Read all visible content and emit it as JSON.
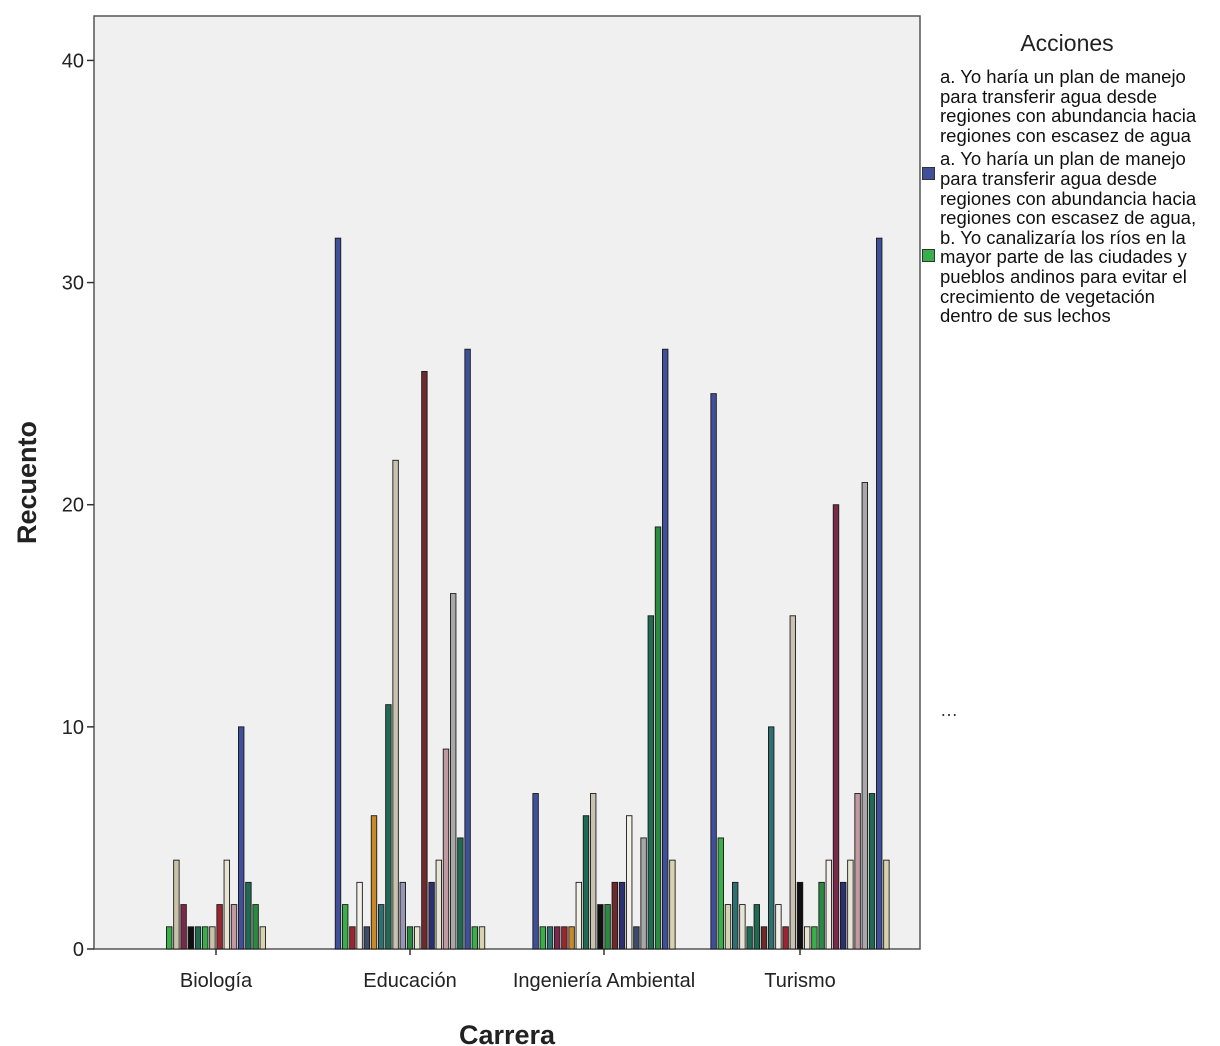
{
  "chart_data": {
    "type": "bar",
    "title": "",
    "xlabel": "Carrera",
    "ylabel": "Recuento",
    "ylim": [
      0,
      42
    ],
    "yticks": [
      0,
      10,
      20,
      30,
      40
    ],
    "categories": [
      "Biología",
      "Educación",
      "Ingeniería Ambiental",
      "Turismo"
    ],
    "grid": false,
    "legend_placement": "right",
    "plot_background": "#f0f0f0",
    "palette": [
      "#3f4f9a",
      "#3aae4a",
      "#c8c2a6",
      "#8a5a3e",
      "#2e7072",
      "#c8c2b0",
      "#e8e4d4",
      "#7a2a48",
      "#3a4c6a",
      "#c8892a",
      "#9896b6",
      "#1f6a52",
      "#f2f0e8",
      "#9b2630",
      "#2a8a40",
      "#c09aa0",
      "#101010",
      "#a8a8a8",
      "#c0a0a0",
      "#6e2a2a",
      "#2a3070",
      "#d8d2ae"
    ],
    "bars": [
      [
        {
          "c": 1,
          "v": 1
        },
        {
          "c": 2,
          "v": 4
        },
        {
          "c": 7,
          "v": 2
        },
        {
          "c": 16,
          "v": 1
        },
        {
          "c": 11,
          "v": 1
        },
        {
          "c": 1,
          "v": 1
        },
        {
          "c": 2,
          "v": 1
        },
        {
          "c": 13,
          "v": 2
        },
        {
          "c": 6,
          "v": 4
        },
        {
          "c": 15,
          "v": 2
        },
        {
          "c": 0,
          "v": 10
        },
        {
          "c": 11,
          "v": 3
        },
        {
          "c": 14,
          "v": 2
        },
        {
          "c": 21,
          "v": 1
        }
      ],
      [
        {
          "c": 0,
          "v": 32
        },
        {
          "c": 1,
          "v": 2
        },
        {
          "c": 13,
          "v": 1
        },
        {
          "c": 12,
          "v": 3
        },
        {
          "c": 8,
          "v": 1
        },
        {
          "c": 9,
          "v": 6
        },
        {
          "c": 4,
          "v": 2
        },
        {
          "c": 11,
          "v": 11
        },
        {
          "c": 5,
          "v": 22
        },
        {
          "c": 10,
          "v": 3
        },
        {
          "c": 14,
          "v": 1
        },
        {
          "c": 6,
          "v": 1
        },
        {
          "c": 19,
          "v": 26
        },
        {
          "c": 20,
          "v": 3
        },
        {
          "c": 6,
          "v": 4
        },
        {
          "c": 15,
          "v": 9
        },
        {
          "c": 17,
          "v": 16
        },
        {
          "c": 11,
          "v": 5
        },
        {
          "c": 0,
          "v": 27
        },
        {
          "c": 1,
          "v": 1
        },
        {
          "c": 21,
          "v": 1
        }
      ],
      [
        {
          "c": 0,
          "v": 7
        },
        {
          "c": 1,
          "v": 1
        },
        {
          "c": 4,
          "v": 1
        },
        {
          "c": 7,
          "v": 1
        },
        {
          "c": 13,
          "v": 1
        },
        {
          "c": 9,
          "v": 1
        },
        {
          "c": 12,
          "v": 3
        },
        {
          "c": 11,
          "v": 6
        },
        {
          "c": 5,
          "v": 7
        },
        {
          "c": 16,
          "v": 2
        },
        {
          "c": 14,
          "v": 2
        },
        {
          "c": 19,
          "v": 3
        },
        {
          "c": 20,
          "v": 3
        },
        {
          "c": 12,
          "v": 6
        },
        {
          "c": 8,
          "v": 1
        },
        {
          "c": 17,
          "v": 5
        },
        {
          "c": 11,
          "v": 15
        },
        {
          "c": 14,
          "v": 19
        },
        {
          "c": 0,
          "v": 27
        },
        {
          "c": 21,
          "v": 4
        }
      ],
      [
        {
          "c": 0,
          "v": 25
        },
        {
          "c": 1,
          "v": 5
        },
        {
          "c": 21,
          "v": 2
        },
        {
          "c": 4,
          "v": 3
        },
        {
          "c": 6,
          "v": 2
        },
        {
          "c": 11,
          "v": 1
        },
        {
          "c": 11,
          "v": 2
        },
        {
          "c": 19,
          "v": 1
        },
        {
          "c": 4,
          "v": 10
        },
        {
          "c": 12,
          "v": 2
        },
        {
          "c": 13,
          "v": 1
        },
        {
          "c": 5,
          "v": 15
        },
        {
          "c": 16,
          "v": 3
        },
        {
          "c": 6,
          "v": 1
        },
        {
          "c": 1,
          "v": 1
        },
        {
          "c": 14,
          "v": 3
        },
        {
          "c": 12,
          "v": 4
        },
        {
          "c": 7,
          "v": 20
        },
        {
          "c": 20,
          "v": 3
        },
        {
          "c": 6,
          "v": 4
        },
        {
          "c": 15,
          "v": 7
        },
        {
          "c": 17,
          "v": 21
        },
        {
          "c": 11,
          "v": 7
        },
        {
          "c": 0,
          "v": 32
        },
        {
          "c": 21,
          "v": 4
        }
      ]
    ]
  },
  "legend": {
    "title": "Acciones",
    "items": [
      {
        "color": "#3f4f9a",
        "text": "a. Yo haría un plan de manejo para transferir agua desde regiones con abundancia hacia regiones con escasez de agua"
      },
      {
        "color": "#3aae4a",
        "text": "a. Yo haría un plan de manejo para transferir agua desde regiones con abundancia hacia regiones con escasez de agua, b. Yo canalizaría los ríos en la mayor parte de las ciudades y pueblos andinos para evitar el crecimiento de vegetación dentro de sus lechos"
      }
    ],
    "more": "…"
  }
}
